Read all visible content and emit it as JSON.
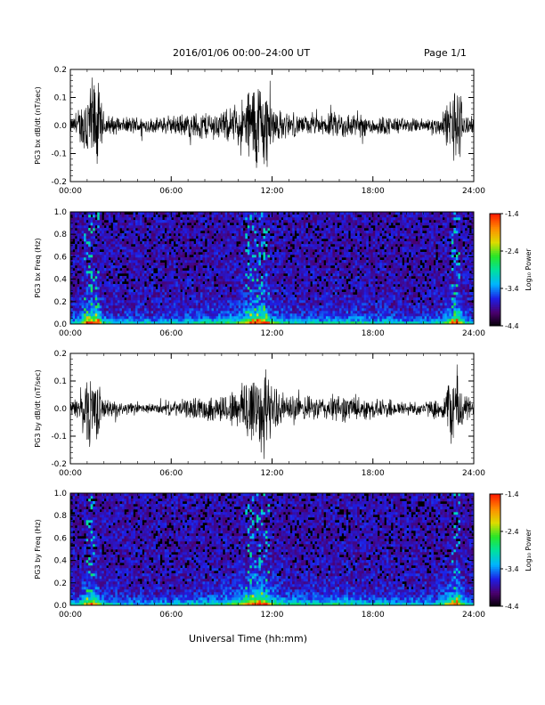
{
  "header": {
    "title": "2016/01/06  00:00–24:00 UT",
    "page": "Page 1/1"
  },
  "xaxis_label": "Universal Time (hh:mm)",
  "colorbar": {
    "label": "Log₁₀ Power",
    "ticks": [
      "-1.4",
      "-2.4",
      "-3.4",
      "-4.4"
    ],
    "colors": [
      "#000000",
      "#4b006e",
      "#1e1ee6",
      "#00b4ff",
      "#00e0a0",
      "#28e628",
      "#dcdc00",
      "#ff8c00",
      "#ff1e00"
    ]
  },
  "chart_data": [
    {
      "type": "line",
      "ylabel": "PG3 bx dB/dt (nT/sec)",
      "xlim": [
        0,
        24
      ],
      "ylim": [
        -0.2,
        0.2
      ],
      "x_ticks": [
        "00:00",
        "06:00",
        "12:00",
        "18:00",
        "24:00"
      ],
      "y_ticks": [
        "0.2",
        "0.1",
        "0.0",
        "-0.1",
        "-0.2"
      ],
      "envelope_hours": [
        0,
        0.5,
        1,
        1.3,
        1.6,
        2,
        3,
        4,
        5,
        6,
        7,
        8,
        9,
        10,
        10.5,
        11,
        11.5,
        12,
        12.5,
        13,
        14,
        15,
        16,
        17,
        18,
        19,
        20,
        21,
        22,
        22.5,
        23,
        23.5,
        24
      ],
      "envelope_amplitude": [
        0.03,
        0.05,
        0.2,
        0.2,
        0.2,
        0.05,
        0.03,
        0.04,
        0.03,
        0.04,
        0.05,
        0.06,
        0.06,
        0.08,
        0.15,
        0.2,
        0.2,
        0.1,
        0.06,
        0.05,
        0.04,
        0.04,
        0.06,
        0.05,
        0.04,
        0.04,
        0.03,
        0.03,
        0.04,
        0.1,
        0.2,
        0.05,
        0.03
      ]
    },
    {
      "type": "heatmap",
      "ylabel": "PG3 bx Freq (Hz)",
      "xlim": [
        0,
        24
      ],
      "ylim": [
        0,
        1.0
      ],
      "x_ticks": [
        "00:00",
        "06:00",
        "12:00",
        "18:00",
        "24:00"
      ],
      "y_ticks": [
        "1.0",
        "0.8",
        "0.6",
        "0.4",
        "0.2",
        "0.0"
      ],
      "zlim": [
        -4.4,
        -1.4
      ],
      "zlabel": "Log₁₀ Power"
    },
    {
      "type": "line",
      "ylabel": "PG3 by dB/dt (nT/sec)",
      "xlim": [
        0,
        24
      ],
      "ylim": [
        -0.2,
        0.2
      ],
      "x_ticks": [
        "00:00",
        "06:00",
        "12:00",
        "18:00",
        "24:00"
      ],
      "y_ticks": [
        "0.2",
        "0.1",
        "0.0",
        "-0.1",
        "-0.2"
      ],
      "envelope_hours": [
        0,
        0.5,
        1,
        1.3,
        1.6,
        2,
        3,
        4,
        5,
        6,
        7,
        8,
        9,
        10,
        10.5,
        11,
        11.5,
        12,
        12.5,
        13,
        14,
        15,
        16,
        17,
        18,
        19,
        20,
        21,
        22,
        22.5,
        23,
        23.5,
        24
      ],
      "envelope_amplitude": [
        0.03,
        0.05,
        0.15,
        0.18,
        0.12,
        0.04,
        0.03,
        0.02,
        0.02,
        0.03,
        0.04,
        0.05,
        0.06,
        0.09,
        0.16,
        0.2,
        0.2,
        0.1,
        0.07,
        0.06,
        0.05,
        0.05,
        0.06,
        0.05,
        0.04,
        0.04,
        0.03,
        0.03,
        0.04,
        0.12,
        0.18,
        0.06,
        0.03
      ]
    },
    {
      "type": "heatmap",
      "ylabel": "PG3 by Freq (Hz)",
      "xlim": [
        0,
        24
      ],
      "ylim": [
        0,
        1.0
      ],
      "x_ticks": [
        "00:00",
        "06:00",
        "12:00",
        "18:00",
        "24:00"
      ],
      "y_ticks": [
        "1.0",
        "0.8",
        "0.6",
        "0.4",
        "0.2",
        "0.0"
      ],
      "zlim": [
        -4.4,
        -1.4
      ],
      "zlabel": "Log₁₀ Power"
    }
  ]
}
